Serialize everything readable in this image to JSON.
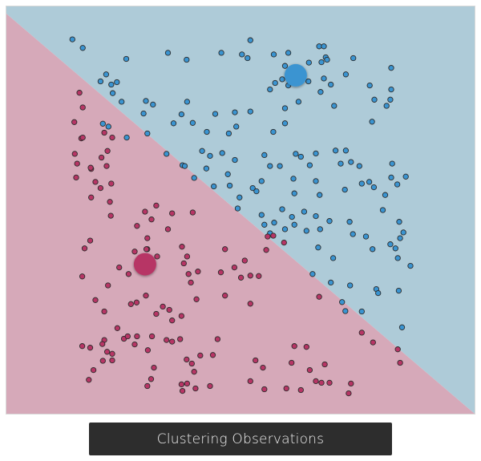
{
  "title": "Clustering Observations",
  "colors": {
    "cluster_a_region": "#aecbd8",
    "cluster_b_region": "#d6a9b9",
    "cluster_a_point": "#3a94d1",
    "cluster_b_point": "#b73565",
    "point_stroke": "#2b2b2b",
    "plot_border": "#d9d9d9",
    "caption_bg": "#2d2d2d"
  },
  "chart_data": {
    "type": "scatter",
    "title": "Clustering Observations",
    "xlabel": "",
    "ylabel": "",
    "xlim": [
      0,
      100
    ],
    "ylim": [
      0,
      100
    ],
    "axes_visible": false,
    "grid": false,
    "decision_boundary": {
      "from": [
        0,
        98.2
      ],
      "to": [
        100,
        0
      ]
    },
    "centroids": [
      {
        "series": "cluster_a",
        "x": 61.8,
        "y": 83.1
      },
      {
        "series": "cluster_b",
        "x": 29.6,
        "y": 36.7
      }
    ],
    "series": [
      {
        "id": "cluster_a",
        "points": [
          [
            14.1,
            91.9
          ],
          [
            16.3,
            89.8
          ],
          [
            25.6,
            87.1
          ],
          [
            21.3,
            83.3
          ],
          [
            22.4,
            80.8
          ],
          [
            23.6,
            81.4
          ],
          [
            20.1,
            81.6
          ],
          [
            22.7,
            78.7
          ],
          [
            24.6,
            76.6
          ],
          [
            20.6,
            71.2
          ],
          [
            21.8,
            70.5
          ],
          [
            29.3,
            73.7
          ],
          [
            29.8,
            76.8
          ],
          [
            31.3,
            75.9
          ],
          [
            34.5,
            88.6
          ],
          [
            38.5,
            86.9
          ],
          [
            45.9,
            88.6
          ],
          [
            52.1,
            91.7
          ],
          [
            51.5,
            87.3
          ],
          [
            50.3,
            88.2
          ],
          [
            57.1,
            88.2
          ],
          [
            60.2,
            88.6
          ],
          [
            66.8,
            90.2
          ],
          [
            67.8,
            90.2
          ],
          [
            68.2,
            87.5
          ],
          [
            68.5,
            86.9
          ],
          [
            67.3,
            86.3
          ],
          [
            64.6,
            86.2
          ],
          [
            74.1,
            87.3
          ],
          [
            59.5,
            85.4
          ],
          [
            60.3,
            84.0
          ],
          [
            58.9,
            82.1
          ],
          [
            57.4,
            81.2
          ],
          [
            56.3,
            79.6
          ],
          [
            60.2,
            80.6
          ],
          [
            64.5,
            81.6
          ],
          [
            69.3,
            80.8
          ],
          [
            67.1,
            79.0
          ],
          [
            67.8,
            82.3
          ],
          [
            72.5,
            83.3
          ],
          [
            82.2,
            84.9
          ],
          [
            77.6,
            80.6
          ],
          [
            78.6,
            77.1
          ],
          [
            78.1,
            71.7
          ],
          [
            82.2,
            79.6
          ],
          [
            82.0,
            77.1
          ],
          [
            81.2,
            75.6
          ],
          [
            70.0,
            75.6
          ],
          [
            62.4,
            76.6
          ],
          [
            59.5,
            75.0
          ],
          [
            59.5,
            71.3
          ],
          [
            57.0,
            69.2
          ],
          [
            48.8,
            74.0
          ],
          [
            52.1,
            74.2
          ],
          [
            49.1,
            70.5
          ],
          [
            44.6,
            73.6
          ],
          [
            37.4,
            73.5
          ],
          [
            38.6,
            76.6
          ],
          [
            30.1,
            68.8
          ],
          [
            25.7,
            67.8
          ],
          [
            35.7,
            71.3
          ],
          [
            39.8,
            71.4
          ],
          [
            42.8,
            69.2
          ],
          [
            47.5,
            68.8
          ],
          [
            55.1,
            63.5
          ],
          [
            56.3,
            60.8
          ],
          [
            58.4,
            60.8
          ],
          [
            46.1,
            64.0
          ],
          [
            41.8,
            64.5
          ],
          [
            34.2,
            63.8
          ],
          [
            37.6,
            61.0
          ],
          [
            38.1,
            60.8
          ],
          [
            42.7,
            60.2
          ],
          [
            43.5,
            63.3
          ],
          [
            48.8,
            62.3
          ],
          [
            47.3,
            58.8
          ],
          [
            47.7,
            56.0
          ],
          [
            52.6,
            55.4
          ],
          [
            53.4,
            54.6
          ],
          [
            54.5,
            57.1
          ],
          [
            49.8,
            53.1
          ],
          [
            49.4,
            50.4
          ],
          [
            44.3,
            55.8
          ],
          [
            40.1,
            57.9
          ],
          [
            61.3,
            57.7
          ],
          [
            61.8,
            63.8
          ],
          [
            64.8,
            61.0
          ],
          [
            62.9,
            63.1
          ],
          [
            66.1,
            63.9
          ],
          [
            70.3,
            64.6
          ],
          [
            72.5,
            64.6
          ],
          [
            73.6,
            61.8
          ],
          [
            75.4,
            60.8
          ],
          [
            77.5,
            56.9
          ],
          [
            82.2,
            58.0
          ],
          [
            82.4,
            61.4
          ],
          [
            85.3,
            58.2
          ],
          [
            83.5,
            56.3
          ],
          [
            78.5,
            55.6
          ],
          [
            75.9,
            56.5
          ],
          [
            72.3,
            55.0
          ],
          [
            71.4,
            61.4
          ],
          [
            66.1,
            57.1
          ],
          [
            61.5,
            54.1
          ],
          [
            66.9,
            53.7
          ],
          [
            63.6,
            49.6
          ],
          [
            61.0,
            48.3
          ],
          [
            58.9,
            50.2
          ],
          [
            61.5,
            46.4
          ],
          [
            59.5,
            45.3
          ],
          [
            57.2,
            46.9
          ],
          [
            55.1,
            46.4
          ],
          [
            56.3,
            44.3
          ],
          [
            54.5,
            48.8
          ],
          [
            66.1,
            48.5
          ],
          [
            67.0,
            45.3
          ],
          [
            64.1,
            44.9
          ],
          [
            66.6,
            40.8
          ],
          [
            69.8,
            38.2
          ],
          [
            65.4,
            34.3
          ],
          [
            69.3,
            32.2
          ],
          [
            73.4,
            31.5
          ],
          [
            71.7,
            27.4
          ],
          [
            75.9,
            25.1
          ],
          [
            72.4,
            25.2
          ],
          [
            78.2,
            40.4
          ],
          [
            82.0,
            41.6
          ],
          [
            76.8,
            43.5
          ],
          [
            74.0,
            44.1
          ],
          [
            73.3,
            47.1
          ],
          [
            69.0,
            47.3
          ],
          [
            80.4,
            50.0
          ],
          [
            80.9,
            53.7
          ],
          [
            83.9,
            47.1
          ],
          [
            84.1,
            43.1
          ],
          [
            83.1,
            40.6
          ],
          [
            84.8,
            44.5
          ],
          [
            83.6,
            38.2
          ],
          [
            86.3,
            36.3
          ],
          [
            83.8,
            30.2
          ],
          [
            79.0,
            30.6
          ],
          [
            84.5,
            21.2
          ],
          [
            79.4,
            29.6
          ]
        ]
      },
      {
        "id": "cluster_b",
        "points": [
          [
            15.6,
            78.8
          ],
          [
            16.3,
            75.2
          ],
          [
            14.5,
            71.6
          ],
          [
            16.0,
            67.6
          ],
          [
            14.6,
            63.8
          ],
          [
            15.1,
            61.4
          ],
          [
            16.3,
            67.8
          ],
          [
            14.9,
            58.0
          ],
          [
            19.0,
            56.9
          ],
          [
            18.1,
            53.1
          ],
          [
            20.3,
            62.9
          ],
          [
            21.6,
            64.5
          ],
          [
            22.6,
            67.8
          ],
          [
            20.9,
            69.0
          ],
          [
            18.1,
            60.1
          ],
          [
            21.4,
            60.8
          ],
          [
            22.4,
            56.5
          ],
          [
            18.0,
            60.4
          ],
          [
            20.1,
            55.4
          ],
          [
            22.1,
            52.0
          ],
          [
            17.9,
            42.5
          ],
          [
            16.7,
            40.6
          ],
          [
            16.2,
            33.7
          ],
          [
            19.0,
            27.9
          ],
          [
            22.3,
            48.6
          ],
          [
            29.6,
            49.6
          ],
          [
            30.1,
            43.1
          ],
          [
            27.9,
            46.1
          ],
          [
            30.1,
            40.4
          ],
          [
            31.0,
            47.7
          ],
          [
            32.0,
            51.1
          ],
          [
            34.5,
            45.3
          ],
          [
            35.4,
            49.2
          ],
          [
            39.8,
            49.4
          ],
          [
            27.4,
            39.8
          ],
          [
            26.1,
            34.3
          ],
          [
            24.1,
            35.9
          ],
          [
            29.9,
            40.4
          ],
          [
            32.2,
            38.6
          ],
          [
            29.4,
            36.1
          ],
          [
            26.6,
            26.9
          ],
          [
            29.8,
            29.0
          ],
          [
            21.7,
            31.5
          ],
          [
            20.9,
            25.1
          ],
          [
            27.8,
            27.3
          ],
          [
            32.0,
            24.5
          ],
          [
            33.4,
            26.3
          ],
          [
            34.8,
            25.5
          ],
          [
            35.4,
            22.9
          ],
          [
            37.9,
            36.9
          ],
          [
            37.5,
            41.0
          ],
          [
            38.6,
            38.6
          ],
          [
            40.9,
            34.9
          ],
          [
            38.9,
            34.3
          ],
          [
            39.4,
            32.2
          ],
          [
            37.4,
            24.0
          ],
          [
            40.6,
            28.1
          ],
          [
            34.2,
            18.1
          ],
          [
            31.1,
            19.0
          ],
          [
            27.9,
            19.0
          ],
          [
            25.1,
            18.4
          ],
          [
            23.7,
            21.0
          ],
          [
            20.9,
            18.1
          ],
          [
            16.2,
            16.6
          ],
          [
            17.9,
            16.2
          ],
          [
            18.6,
            10.7
          ],
          [
            17.6,
            8.3
          ],
          [
            20.5,
            17.1
          ],
          [
            21.5,
            15.2
          ],
          [
            22.6,
            14.7
          ],
          [
            22.6,
            13.1
          ],
          [
            20.6,
            13.0
          ],
          [
            25.9,
            19.0
          ],
          [
            27.4,
            17.0
          ],
          [
            30.2,
            15.6
          ],
          [
            31.5,
            11.3
          ],
          [
            30.9,
            8.5
          ],
          [
            30.1,
            6.8
          ],
          [
            35.4,
            17.7
          ],
          [
            37.1,
            18.3
          ],
          [
            38.5,
            13.3
          ],
          [
            39.6,
            12.3
          ],
          [
            40.1,
            10.3
          ],
          [
            37.4,
            7.2
          ],
          [
            38.6,
            7.4
          ],
          [
            40.4,
            6.2
          ],
          [
            37.6,
            5.6
          ],
          [
            43.5,
            6.8
          ],
          [
            41.4,
            14.3
          ],
          [
            44.1,
            14.4
          ],
          [
            45.1,
            18.3
          ],
          [
            46.7,
            29.0
          ],
          [
            45.8,
            34.7
          ],
          [
            46.7,
            40.4
          ],
          [
            48.7,
            35.9
          ],
          [
            50.1,
            33.4
          ],
          [
            52.1,
            33.9
          ],
          [
            53.9,
            33.8
          ],
          [
            50.9,
            37.6
          ],
          [
            55.5,
            40.2
          ],
          [
            55.8,
            43.5
          ],
          [
            57.0,
            43.7
          ],
          [
            59.3,
            42.0
          ],
          [
            52.1,
            27.0
          ],
          [
            53.2,
            13.1
          ],
          [
            54.8,
            11.3
          ],
          [
            55.1,
            6.0
          ],
          [
            52.1,
            8.0
          ],
          [
            59.8,
            6.2
          ],
          [
            62.9,
            5.8
          ],
          [
            60.9,
            12.5
          ],
          [
            64.8,
            10.7
          ],
          [
            61.5,
            16.6
          ],
          [
            64.1,
            16.4
          ],
          [
            68.0,
            12.1
          ],
          [
            66.1,
            8.0
          ],
          [
            67.3,
            7.6
          ],
          [
            69.0,
            7.6
          ],
          [
            73.1,
            5.0
          ],
          [
            73.6,
            7.4
          ],
          [
            66.8,
            28.7
          ],
          [
            75.9,
            19.9
          ],
          [
            78.3,
            17.5
          ],
          [
            83.6,
            15.8
          ],
          [
            84.1,
            12.5
          ]
        ]
      }
    ]
  }
}
